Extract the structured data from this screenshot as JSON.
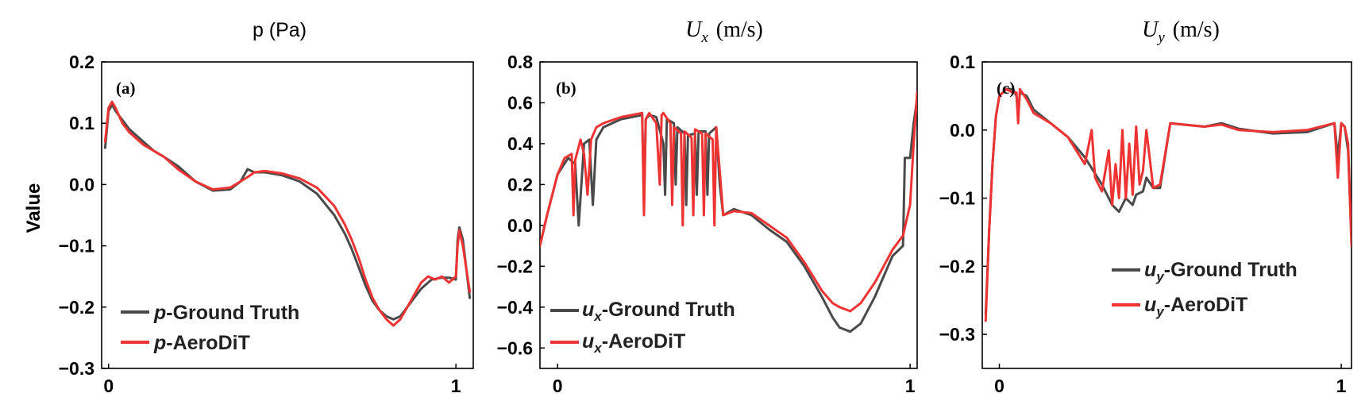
{
  "figure": {
    "shared_ylabel": "Value"
  },
  "colors": {
    "ground_truth": "#4a4a4a",
    "prediction": "#ee3333",
    "axis": "#000000"
  },
  "chart_data": [
    {
      "type": "line",
      "panel": "(a)",
      "title": "p (Pa)",
      "title_style": "sans",
      "xlim": [
        -0.02,
        1.05
      ],
      "ylim": [
        -0.3,
        0.2
      ],
      "xticks": [
        0,
        1
      ],
      "xtick_labels": [
        "0",
        "1"
      ],
      "yticks": [
        0.2,
        0.1,
        0.0,
        -0.1,
        -0.2,
        -0.3
      ],
      "ytick_labels": [
        "0.2",
        "0.1",
        "0.0",
        "−0.1",
        "−0.2",
        "−0.3"
      ],
      "legend_position": "bottom-left",
      "series": [
        {
          "name": "p-Ground Truth",
          "legend_main": "p",
          "legend_sub": "",
          "legend_rest": "-Ground Truth",
          "color_key": "ground_truth",
          "x": [
            -0.01,
            0.0,
            0.01,
            0.02,
            0.04,
            0.06,
            0.08,
            0.1,
            0.13,
            0.16,
            0.2,
            0.25,
            0.3,
            0.35,
            0.38,
            0.4,
            0.42,
            0.45,
            0.5,
            0.55,
            0.6,
            0.65,
            0.68,
            0.7,
            0.72,
            0.74,
            0.76,
            0.78,
            0.8,
            0.82,
            0.84,
            0.86,
            0.88,
            0.9,
            0.93,
            0.96,
            0.98,
            1.0,
            1.005,
            1.01,
            1.02,
            1.04
          ],
          "y": [
            0.06,
            0.12,
            0.13,
            0.12,
            0.105,
            0.09,
            0.08,
            0.07,
            0.055,
            0.045,
            0.03,
            0.005,
            -0.01,
            -0.008,
            0.005,
            0.025,
            0.02,
            0.02,
            0.015,
            0.005,
            -0.015,
            -0.05,
            -0.08,
            -0.105,
            -0.135,
            -0.165,
            -0.19,
            -0.205,
            -0.215,
            -0.22,
            -0.215,
            -0.2,
            -0.185,
            -0.17,
            -0.155,
            -0.152,
            -0.152,
            -0.155,
            -0.09,
            -0.07,
            -0.09,
            -0.185
          ]
        },
        {
          "name": "p-AeroDiT",
          "legend_main": "p",
          "legend_sub": "",
          "legend_rest": "-AeroDiT",
          "color_key": "prediction",
          "x": [
            -0.01,
            0.0,
            0.01,
            0.02,
            0.04,
            0.06,
            0.08,
            0.1,
            0.13,
            0.16,
            0.2,
            0.25,
            0.3,
            0.35,
            0.38,
            0.4,
            0.42,
            0.45,
            0.5,
            0.55,
            0.6,
            0.65,
            0.68,
            0.7,
            0.72,
            0.74,
            0.76,
            0.78,
            0.8,
            0.82,
            0.84,
            0.86,
            0.88,
            0.9,
            0.92,
            0.94,
            0.96,
            0.98,
            1.0,
            1.005,
            1.01,
            1.02,
            1.04
          ],
          "y": [
            0.07,
            0.125,
            0.135,
            0.125,
            0.1,
            0.085,
            0.075,
            0.065,
            0.055,
            0.045,
            0.025,
            0.005,
            -0.008,
            -0.005,
            0.005,
            0.012,
            0.02,
            0.022,
            0.018,
            0.01,
            -0.005,
            -0.035,
            -0.065,
            -0.09,
            -0.12,
            -0.155,
            -0.185,
            -0.205,
            -0.22,
            -0.23,
            -0.22,
            -0.2,
            -0.18,
            -0.16,
            -0.15,
            -0.155,
            -0.15,
            -0.16,
            -0.15,
            -0.1,
            -0.075,
            -0.1,
            -0.175
          ]
        }
      ]
    },
    {
      "type": "line",
      "panel": "(b)",
      "title": "U_x (m/s)",
      "title_style": "math",
      "title_main": "U",
      "title_sub": "x",
      "title_unit": "(m/s)",
      "xlim": [
        -0.05,
        1.02
      ],
      "ylim": [
        -0.7,
        0.8
      ],
      "xticks": [
        0,
        1
      ],
      "xtick_labels": [
        "0",
        "1"
      ],
      "yticks": [
        0.8,
        0.6,
        0.4,
        0.2,
        0.0,
        -0.2,
        -0.4,
        -0.6
      ],
      "ytick_labels": [
        "0.8",
        "0.6",
        "0.4",
        "0.2",
        "0.0",
        "−0.2",
        "−0.4",
        "−0.6"
      ],
      "legend_position": "bottom-left",
      "series": [
        {
          "name": "ux-Ground Truth",
          "legend_main": "u",
          "legend_sub": "x",
          "legend_rest": "-Ground Truth",
          "color_key": "ground_truth",
          "x": [
            -0.05,
            -0.03,
            0.0,
            0.03,
            0.05,
            0.06,
            0.075,
            0.09,
            0.1,
            0.11,
            0.13,
            0.18,
            0.24,
            0.245,
            0.25,
            0.26,
            0.28,
            0.3,
            0.305,
            0.31,
            0.33,
            0.335,
            0.34,
            0.36,
            0.365,
            0.37,
            0.39,
            0.395,
            0.4,
            0.42,
            0.425,
            0.43,
            0.45,
            0.46,
            0.47,
            0.5,
            0.55,
            0.6,
            0.65,
            0.7,
            0.75,
            0.78,
            0.8,
            0.83,
            0.86,
            0.9,
            0.95,
            0.98,
            0.985,
            1.0,
            1.01,
            1.02
          ],
          "y": [
            -0.1,
            0.05,
            0.25,
            0.33,
            0.3,
            0.0,
            0.4,
            0.42,
            0.1,
            0.42,
            0.48,
            0.52,
            0.54,
            0.1,
            0.52,
            0.54,
            0.53,
            0.4,
            0.15,
            0.52,
            0.5,
            0.2,
            0.48,
            0.45,
            0.1,
            0.44,
            0.45,
            0.15,
            0.46,
            0.46,
            0.15,
            0.45,
            0.48,
            0.2,
            0.05,
            0.08,
            0.05,
            -0.02,
            -0.08,
            -0.2,
            -0.35,
            -0.45,
            -0.5,
            -0.52,
            -0.48,
            -0.35,
            -0.15,
            -0.1,
            0.33,
            0.33,
            0.5,
            0.62
          ]
        },
        {
          "name": "ux-AeroDiT",
          "legend_main": "u",
          "legend_sub": "x",
          "legend_rest": "-AeroDiT",
          "color_key": "prediction",
          "x": [
            -0.05,
            -0.03,
            0.0,
            0.02,
            0.04,
            0.045,
            0.05,
            0.065,
            0.075,
            0.085,
            0.095,
            0.11,
            0.13,
            0.18,
            0.24,
            0.245,
            0.25,
            0.26,
            0.28,
            0.29,
            0.295,
            0.3,
            0.32,
            0.325,
            0.33,
            0.35,
            0.355,
            0.36,
            0.38,
            0.385,
            0.39,
            0.41,
            0.415,
            0.42,
            0.44,
            0.445,
            0.45,
            0.47,
            0.5,
            0.55,
            0.6,
            0.65,
            0.7,
            0.75,
            0.78,
            0.8,
            0.83,
            0.86,
            0.9,
            0.95,
            0.98,
            1.0,
            1.01,
            1.02
          ],
          "y": [
            -0.1,
            0.05,
            0.25,
            0.33,
            0.35,
            0.05,
            0.32,
            0.42,
            0.35,
            0.15,
            0.42,
            0.48,
            0.5,
            0.53,
            0.55,
            0.05,
            0.52,
            0.55,
            0.5,
            0.2,
            0.54,
            0.55,
            0.5,
            0.1,
            0.48,
            0.45,
            0.0,
            0.46,
            0.43,
            0.05,
            0.47,
            0.45,
            0.05,
            0.45,
            0.42,
            0.0,
            0.48,
            0.05,
            0.07,
            0.06,
            0.0,
            -0.06,
            -0.18,
            -0.32,
            -0.38,
            -0.4,
            -0.42,
            -0.38,
            -0.28,
            -0.12,
            -0.05,
            0.1,
            0.4,
            0.65
          ]
        }
      ]
    },
    {
      "type": "line",
      "panel": "(c)",
      "title": "U_y (m/s)",
      "title_style": "math",
      "title_main": "U",
      "title_sub": "y",
      "title_unit": "(m/s)",
      "xlim": [
        -0.05,
        1.03
      ],
      "ylim": [
        -0.35,
        0.1
      ],
      "xticks": [
        0,
        1
      ],
      "xtick_labels": [
        "0",
        "1"
      ],
      "yticks": [
        0.1,
        0.0,
        -0.1,
        -0.2,
        -0.3
      ],
      "ytick_labels": [
        "0.1",
        "0.0",
        "−0.1",
        "−0.2",
        "−0.3"
      ],
      "legend_position": "bottom-right",
      "series": [
        {
          "name": "uy-Ground Truth",
          "legend_main": "u",
          "legend_sub": "y",
          "legend_rest": "-Ground Truth",
          "color_key": "ground_truth",
          "x": [
            -0.04,
            -0.03,
            -0.02,
            -0.01,
            0.0,
            0.02,
            0.04,
            0.05,
            0.055,
            0.06,
            0.08,
            0.1,
            0.15,
            0.2,
            0.25,
            0.3,
            0.33,
            0.35,
            0.37,
            0.39,
            0.4,
            0.42,
            0.43,
            0.45,
            0.47,
            0.5,
            0.6,
            0.65,
            0.7,
            0.8,
            0.9,
            0.98,
            0.99,
            1.0,
            1.01,
            1.02,
            1.03
          ],
          "y": [
            -0.27,
            -0.15,
            -0.05,
            0.02,
            0.05,
            0.06,
            0.06,
            0.05,
            0.02,
            0.055,
            0.05,
            0.03,
            0.01,
            -0.01,
            -0.04,
            -0.08,
            -0.11,
            -0.12,
            -0.1,
            -0.11,
            -0.095,
            -0.09,
            -0.07,
            -0.085,
            -0.085,
            0.01,
            0.005,
            0.01,
            0.002,
            -0.005,
            -0.003,
            0.01,
            -0.04,
            0.01,
            0.005,
            -0.03,
            -0.16
          ]
        },
        {
          "name": "uy-AeroDiT",
          "legend_main": "u",
          "legend_sub": "y",
          "legend_rest": "-AeroDiT",
          "color_key": "prediction",
          "x": [
            -0.04,
            -0.03,
            -0.02,
            -0.01,
            0.0,
            0.02,
            0.04,
            0.05,
            0.055,
            0.06,
            0.08,
            0.1,
            0.15,
            0.2,
            0.25,
            0.27,
            0.28,
            0.3,
            0.32,
            0.33,
            0.34,
            0.35,
            0.36,
            0.37,
            0.38,
            0.39,
            0.4,
            0.41,
            0.42,
            0.43,
            0.45,
            0.47,
            0.5,
            0.6,
            0.65,
            0.7,
            0.8,
            0.9,
            0.98,
            0.99,
            1.0,
            1.01,
            1.02,
            1.03
          ],
          "y": [
            -0.28,
            -0.15,
            -0.05,
            0.02,
            0.05,
            0.06,
            0.055,
            0.055,
            0.01,
            0.06,
            0.045,
            0.025,
            0.01,
            -0.01,
            -0.05,
            0.0,
            -0.07,
            -0.09,
            -0.03,
            -0.11,
            -0.05,
            -0.1,
            0.0,
            -0.1,
            -0.02,
            -0.095,
            0.005,
            -0.08,
            -0.06,
            0.0,
            -0.085,
            -0.08,
            0.01,
            0.005,
            0.008,
            0.0,
            -0.003,
            0.0,
            0.01,
            -0.07,
            0.01,
            0.005,
            -0.02,
            -0.17
          ]
        }
      ]
    }
  ]
}
